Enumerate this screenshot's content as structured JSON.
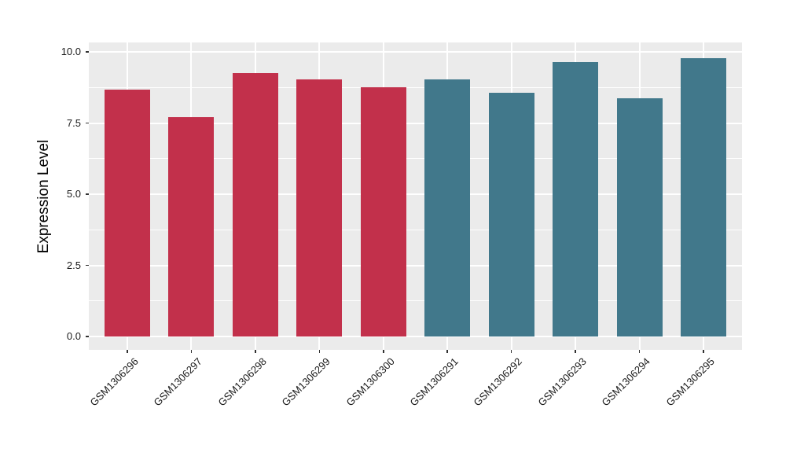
{
  "chart_data": {
    "type": "bar",
    "title": "",
    "xlabel": "",
    "ylabel": "Expression Level",
    "categories": [
      "GSM1306296",
      "GSM1306297",
      "GSM1306298",
      "GSM1306299",
      "GSM1306300",
      "GSM1306291",
      "GSM1306292",
      "GSM1306293",
      "GSM1306294",
      "GSM1306295"
    ],
    "values": [
      8.67,
      7.7,
      9.25,
      9.03,
      8.76,
      9.02,
      8.55,
      9.64,
      8.38,
      9.78
    ],
    "bar_colors": [
      "#C2304B",
      "#C2304B",
      "#C2304B",
      "#C2304B",
      "#C2304B",
      "#41788B",
      "#41788B",
      "#41788B",
      "#41788B",
      "#41788B"
    ],
    "ylim": [
      0,
      10.35
    ],
    "ytick_labels": [
      "0.0",
      "2.5",
      "5.0",
      "7.5",
      "10.0"
    ],
    "ytick_values": [
      0,
      2.5,
      5,
      7.5,
      10
    ],
    "minor_ytick_values": [
      1.25,
      3.75,
      6.25,
      8.75
    ],
    "grid": "horizontal major+minor, vertical major at category centers",
    "legend_position": "none"
  },
  "style": {
    "figure_background": "#FFFFFF",
    "panel_background": "#EBEBEB",
    "gridline_color": "#FFFFFF",
    "group1_color": "#C2304B",
    "group2_color": "#41788B",
    "axis_text_color": "#1A1A1A",
    "tick_mark_color": "#333333"
  }
}
